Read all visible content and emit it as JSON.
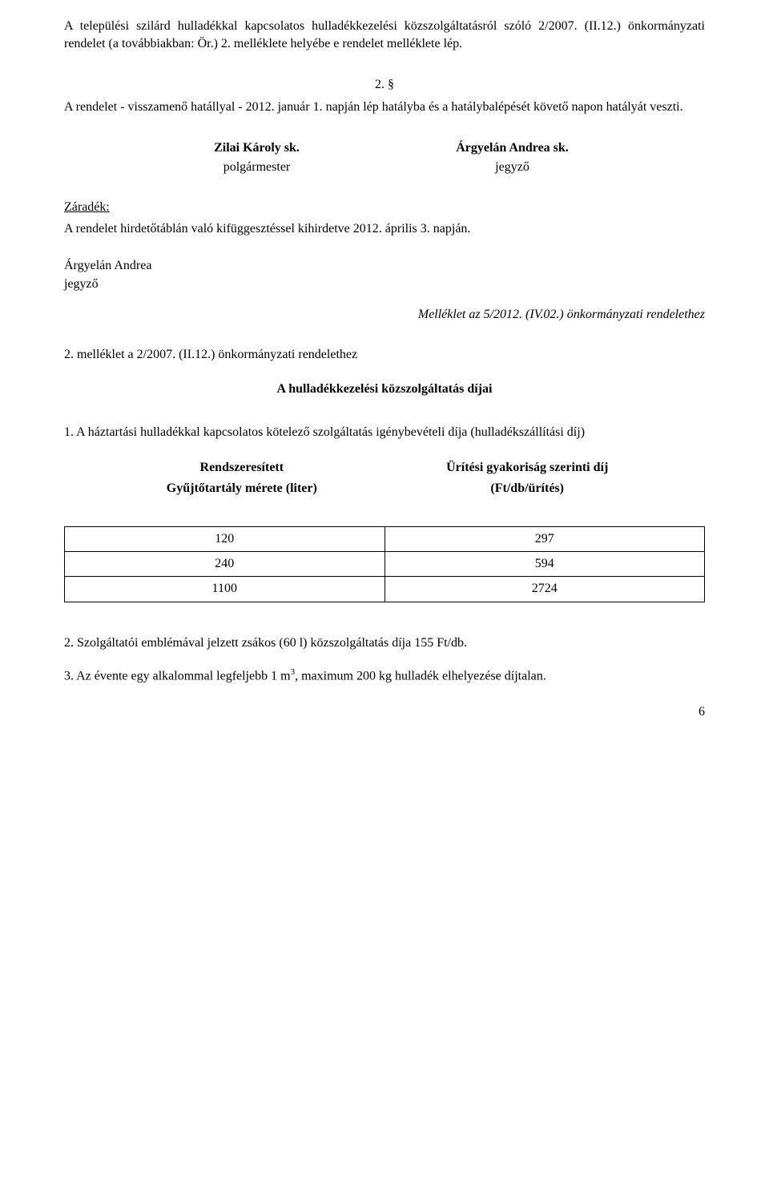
{
  "intro": {
    "p1": "A települési szilárd hulladékkal kapcsolatos hulladékkezelési közszolgáltatásról szóló 2/2007. (II.12.) önkormányzati rendelet (a továbbiakban: Ör.) 2. melléklete helyébe e rendelet melléklete lép.",
    "section_number": "2. §",
    "p2": "A rendelet - visszamenő hatállyal - 2012. január 1. napján lép hatályba és a hatálybalépését követő napon hatályát veszti."
  },
  "signatures": {
    "left_name": "Zilai Károly sk.",
    "left_title": "polgármester",
    "right_name": "Árgyelán Andrea sk.",
    "right_title": "jegyző"
  },
  "zaradek": {
    "label": "Záradék:",
    "text": "A rendelet hirdetőtáblán való kifüggesztéssel kihirdetve 2012. április 3. napján.",
    "jegyzo_name": "Árgyelán Andrea",
    "jegyzo_title": "jegyző"
  },
  "melleklet": {
    "reference": "Melléklet az 5/2012. (IV.02.) önkormányzati rendelethez",
    "sub_ref": "2. melléklet a 2/2007. (II.12.) önkormányzati rendelethez",
    "title": "A hulladékkezelési közszolgáltatás díjai",
    "item1": "1. A háztartási hulladékkal kapcsolatos kötelező szolgáltatás igénybevételi díja (hulladékszállítási díj)"
  },
  "table": {
    "header_left_line1": "Rendszeresített",
    "header_left_line2": "Gyűjtőtartály mérete (liter)",
    "header_right_line1": "Ürítési gyakoriság szerinti díj",
    "header_right_line2": "(Ft/db/ürítés)",
    "rows": [
      {
        "size": "120",
        "price": "297"
      },
      {
        "size": "240",
        "price": "594"
      },
      {
        "size": "1100",
        "price": "2724"
      }
    ]
  },
  "footer": {
    "item2": "2. Szolgáltatói emblémával jelzett zsákos (60 l) közszolgáltatás díja 155 Ft/db.",
    "item3_pre": "3. Az évente egy alkalommal legfeljebb 1 m",
    "item3_sup": "3",
    "item3_post": ", maximum 200 kg hulladék elhelyezése díjtalan.",
    "page_number": "6"
  }
}
